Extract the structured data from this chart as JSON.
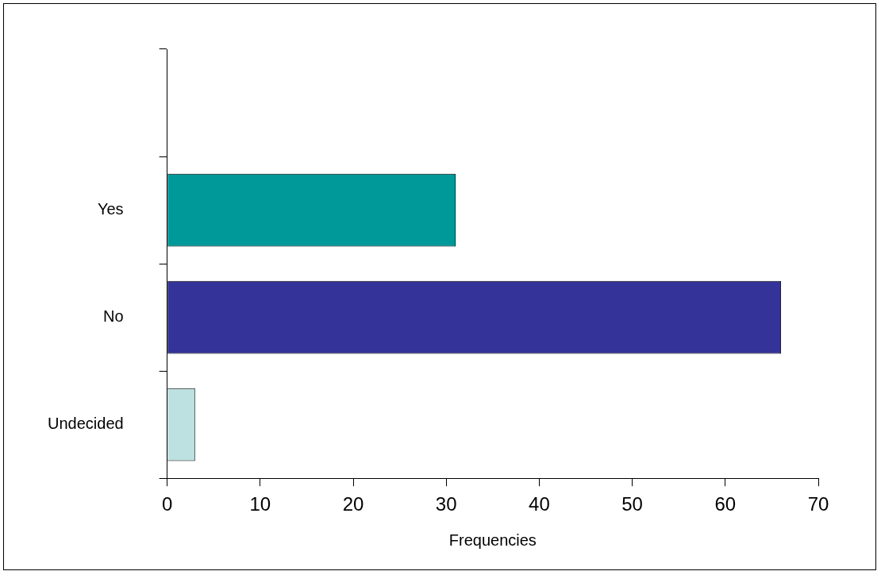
{
  "chart_data": {
    "type": "bar",
    "orientation": "horizontal",
    "xlabel": "Frequencies",
    "categories": [
      null,
      "Yes",
      "No",
      "Undecided"
    ],
    "values": [
      null,
      31,
      66,
      3
    ],
    "colors": [
      "#009999",
      "#009999",
      "#333399",
      "#bde0e0"
    ],
    "xlim": [
      0,
      70
    ],
    "xticks": [
      0,
      10,
      20,
      30,
      40,
      50,
      60,
      70
    ],
    "grid": false,
    "legend": false
  }
}
